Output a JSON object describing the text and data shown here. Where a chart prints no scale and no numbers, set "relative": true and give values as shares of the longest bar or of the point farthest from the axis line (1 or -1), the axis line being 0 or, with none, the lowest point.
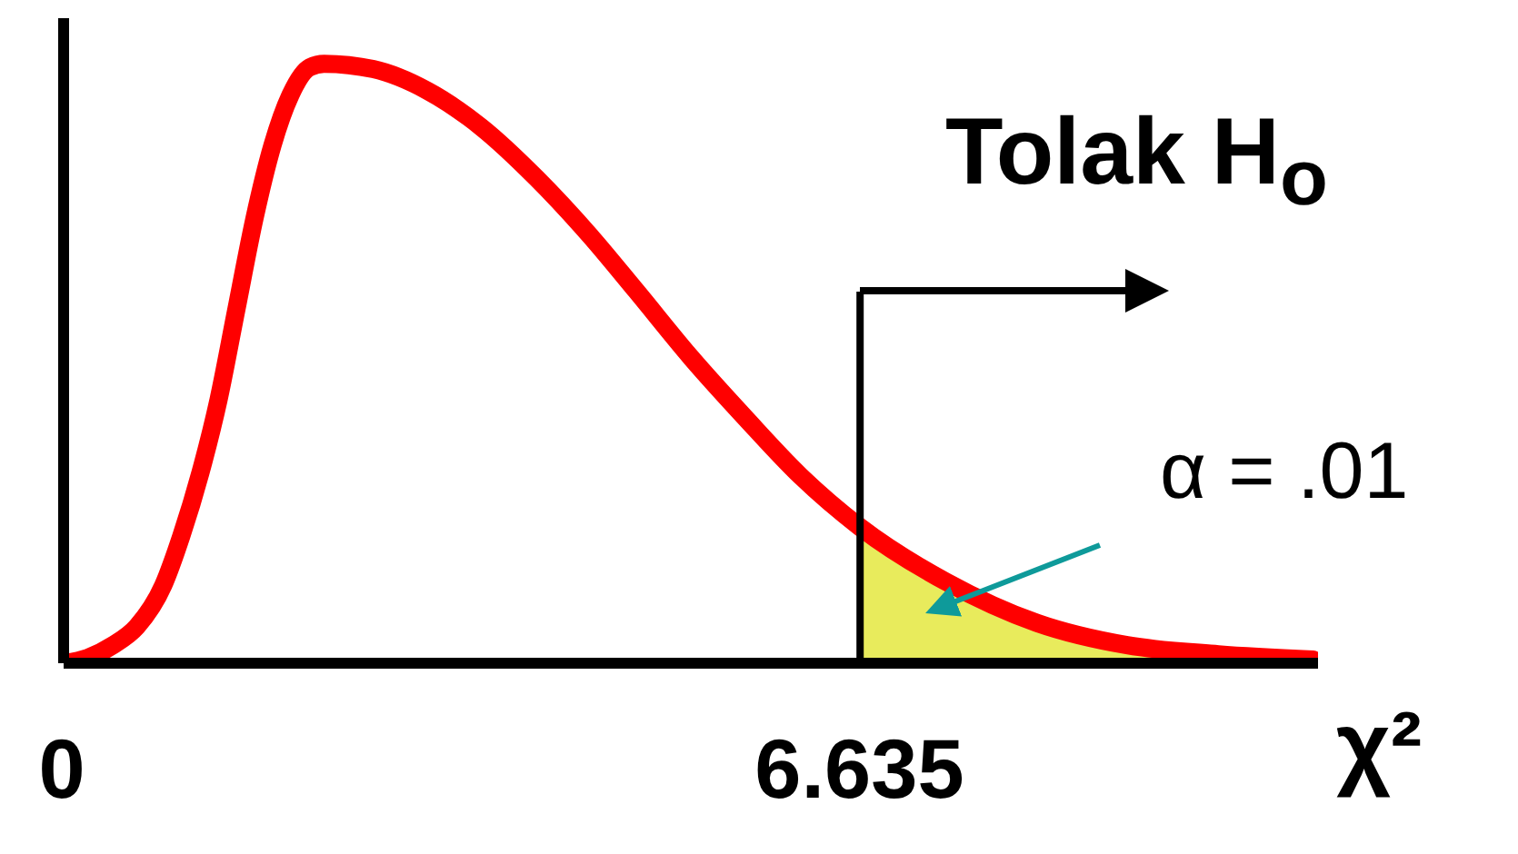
{
  "chart_data": {
    "type": "line",
    "relative": true,
    "xlabel": "χ²",
    "xlim": [
      0,
      10.45
    ],
    "xticks": [
      0,
      6.635
    ],
    "grid": false,
    "marker": "none",
    "series": [
      {
        "color": "#ff0000",
        "x": [
          0,
          0.2,
          0.41,
          0.61,
          0.83,
          0.98,
          1.14,
          1.29,
          1.44,
          1.59,
          1.74,
          1.89,
          2.05,
          2.17,
          2.58,
          3.03,
          3.48,
          3.94,
          4.39,
          4.77,
          5.23,
          5.68,
          6.14,
          6.635,
          7.35,
          8.11,
          8.86,
          9.62,
          10.41
        ],
        "values": [
          0,
          0.009,
          0.03,
          0.061,
          0.13,
          0.212,
          0.318,
          0.439,
          0.591,
          0.742,
          0.864,
          0.948,
          0.994,
          1,
          0.991,
          0.955,
          0.894,
          0.809,
          0.712,
          0.621,
          0.509,
          0.409,
          0.312,
          0.227,
          0.136,
          0.067,
          0.03,
          0.015,
          0.006
        ]
      },
      {
        "type": "area",
        "color": "#e8eb5c",
        "x": [
          6.635,
          7.35,
          8.11,
          8.86,
          9.62,
          10.41
        ],
        "values": [
          0.227,
          0.136,
          0.067,
          0.03,
          0.015,
          0.006
        ]
      }
    ],
    "ref_lines": [
      {
        "axis": "x",
        "value": 6.635,
        "color": "#000000"
      }
    ],
    "annotations": [
      "Tolak H$_{o}$",
      "α = .01"
    ]
  }
}
